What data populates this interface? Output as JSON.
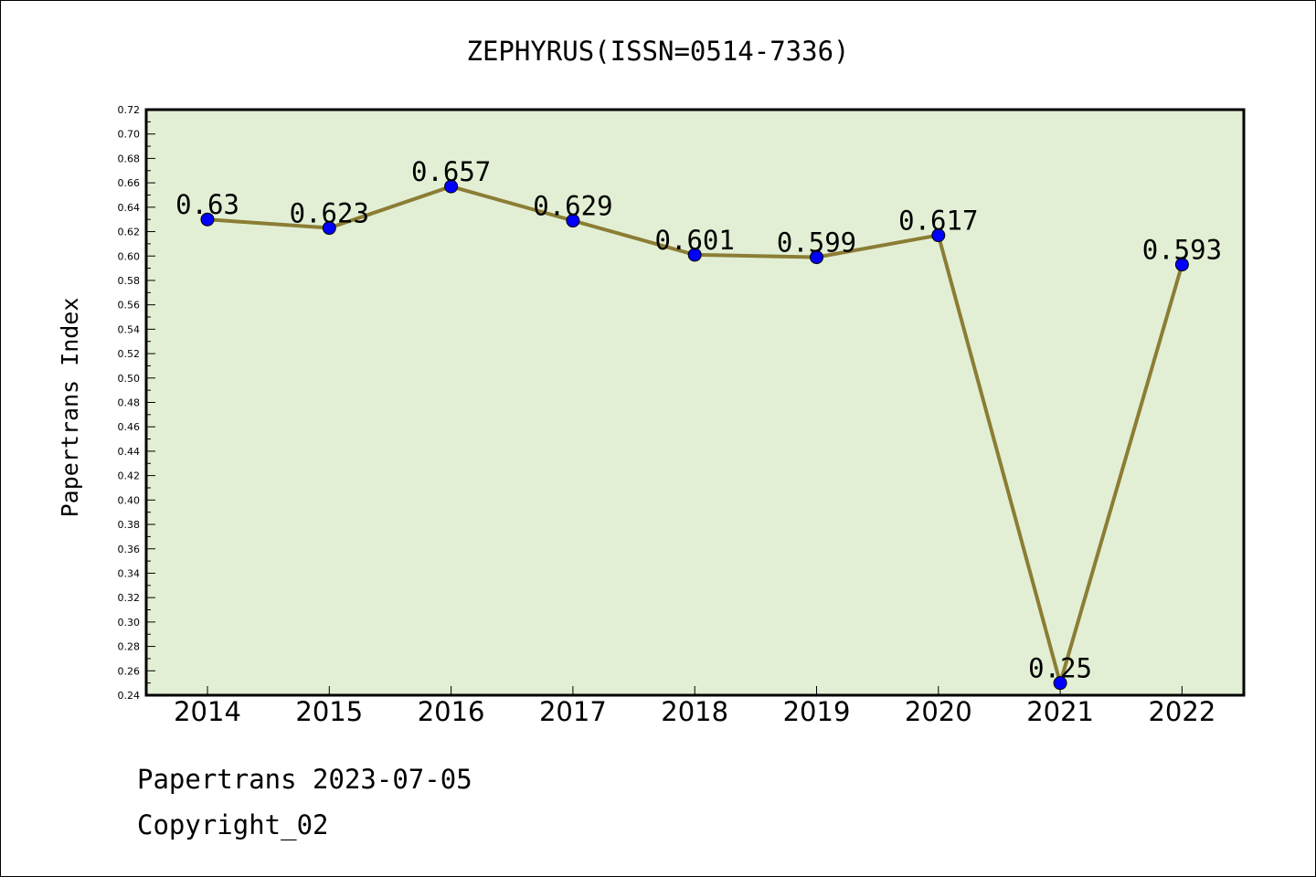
{
  "chart_data": {
    "type": "line",
    "title": "ZEPHYRUS(ISSN=0514-7336)",
    "xlabel": "",
    "ylabel": "Papertrans Index",
    "categories": [
      "2014",
      "2015",
      "2016",
      "2017",
      "2018",
      "2019",
      "2020",
      "2021",
      "2022"
    ],
    "series": [
      {
        "values": [
          0.63,
          0.623,
          0.657,
          0.629,
          0.601,
          0.599,
          0.617,
          0.25,
          0.593
        ],
        "labels": [
          "0.63",
          "0.623",
          "0.657",
          "0.629",
          "0.601",
          "0.599",
          "0.617",
          "0.25",
          "0.593"
        ]
      }
    ],
    "ylim": [
      0.24,
      0.72
    ],
    "ytick_step": 0.02,
    "grid": false,
    "colors": {
      "line": "#8b7d35",
      "marker": "#0000ff",
      "plot_bg": "#e2efd4"
    }
  },
  "footer": {
    "date_line": "Papertrans 2023-07-05",
    "copyright": "Copyright_02"
  }
}
